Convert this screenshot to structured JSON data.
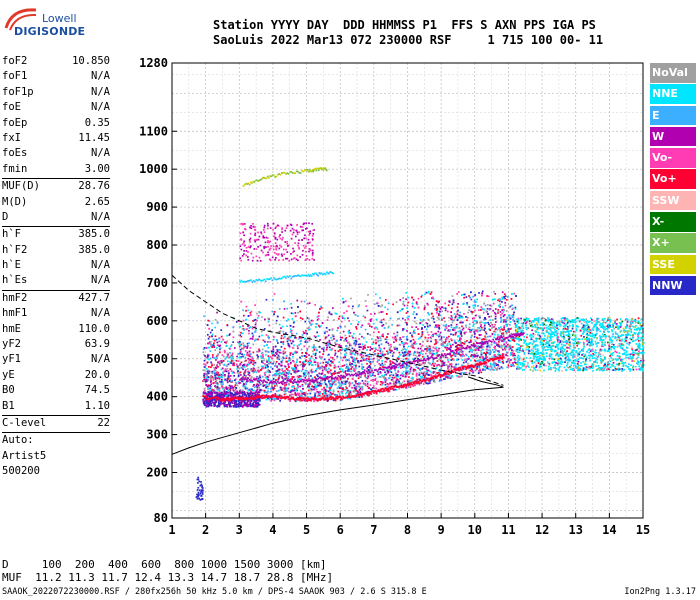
{
  "logo": {
    "line1": "Lowell",
    "line2": "DIGISONDE"
  },
  "header": {
    "line1": "Station YYYY DAY  DDD HHMMSS P1  FFS S AXN PPS IGA PS",
    "line2": "SaoLuis 2022 Mar13 072 230000 RSF     1 715 100 00- 11"
  },
  "params": {
    "group1": [
      {
        "k": "foF2",
        "v": "10.850"
      },
      {
        "k": "foF1",
        "v": "N/A"
      },
      {
        "k": "foF1p",
        "v": "N/A"
      },
      {
        "k": "foE",
        "v": "N/A"
      },
      {
        "k": "foEp",
        "v": "0.35"
      },
      {
        "k": "fxI",
        "v": "11.45"
      },
      {
        "k": "foEs",
        "v": "N/A"
      },
      {
        "k": "fmin",
        "v": "3.00"
      }
    ],
    "group2": [
      {
        "k": "MUF(D)",
        "v": "28.76"
      },
      {
        "k": "M(D)",
        "v": "2.65"
      },
      {
        "k": "D",
        "v": "N/A"
      }
    ],
    "group3": [
      {
        "k": "h`F",
        "v": "385.0"
      },
      {
        "k": "h`F2",
        "v": "385.0"
      },
      {
        "k": "h`E",
        "v": "N/A"
      },
      {
        "k": "h`Es",
        "v": "N/A"
      }
    ],
    "group4": [
      {
        "k": "hmF2",
        "v": "427.7"
      },
      {
        "k": "hmF1",
        "v": "N/A"
      },
      {
        "k": "hmE",
        "v": "110.0"
      },
      {
        "k": "yF2",
        "v": "63.9"
      },
      {
        "k": "yF1",
        "v": "N/A"
      },
      {
        "k": "yE",
        "v": "20.0"
      },
      {
        "k": "B0",
        "v": "74.5"
      },
      {
        "k": "B1",
        "v": "1.10"
      }
    ],
    "group5": [
      {
        "k": "C-level",
        "v": "22"
      }
    ],
    "auto": [
      "Auto:",
      "Artist5",
      "500200"
    ]
  },
  "legend": [
    {
      "label": "NoVal",
      "color": "#a0a0a0"
    },
    {
      "label": "NNE",
      "color": "#00e6ff"
    },
    {
      "label": "E",
      "color": "#3cb0ff"
    },
    {
      "label": "W",
      "color": "#b000b0"
    },
    {
      "label": "Vo-",
      "color": "#ff3cb4"
    },
    {
      "label": "Vo+",
      "color": "#ff0033"
    },
    {
      "label": "SSW",
      "color": "#ffb4b4"
    },
    {
      "label": "X-",
      "color": "#007800"
    },
    {
      "label": "X+",
      "color": "#78c050"
    },
    {
      "label": "SSE",
      "color": "#d2d200"
    },
    {
      "label": "NNW",
      "color": "#2828c8"
    }
  ],
  "chart_data": {
    "type": "scatter",
    "title": "",
    "xlabel": "",
    "ylabel": "",
    "xlim": [
      1,
      15
    ],
    "ylim": [
      80,
      1280
    ],
    "xticks": [
      "1",
      "2",
      "3",
      "4",
      "5",
      "6",
      "7",
      "8",
      "9",
      "10",
      "11",
      "12",
      "13",
      "14",
      "15"
    ],
    "yticks": [
      {
        "v": 80,
        "label": "80"
      },
      {
        "v": 200,
        "label": "200"
      },
      {
        "v": 300,
        "label": "300"
      },
      {
        "v": 400,
        "label": "400"
      },
      {
        "v": 500,
        "label": "500"
      },
      {
        "v": 600,
        "label": "600"
      },
      {
        "v": 700,
        "label": "700"
      },
      {
        "v": 800,
        "label": "800"
      },
      {
        "v": 900,
        "label": "900"
      },
      {
        "v": 1000,
        "label": "1000"
      },
      {
        "v": 1100,
        "label": "1100"
      },
      {
        "v": 1280,
        "label": "1280"
      }
    ],
    "grid": true,
    "traces": [
      {
        "name": "o-trace",
        "points": [
          [
            1.9,
            400
          ],
          [
            2.5,
            395
          ],
          [
            3,
            398
          ],
          [
            3.5,
            400
          ],
          [
            4,
            405
          ],
          [
            4.5,
            398
          ],
          [
            5,
            395
          ],
          [
            5.5,
            397
          ],
          [
            6,
            400
          ],
          [
            6.5,
            405
          ],
          [
            7,
            415
          ],
          [
            7.5,
            425
          ],
          [
            8,
            435
          ],
          [
            8.5,
            445
          ],
          [
            9,
            460
          ],
          [
            9.5,
            475
          ],
          [
            10,
            485
          ],
          [
            10.5,
            500
          ],
          [
            10.85,
            510
          ]
        ]
      },
      {
        "name": "x-trace",
        "points": [
          [
            3,
            450
          ],
          [
            4,
            440
          ],
          [
            5,
            445
          ],
          [
            6,
            455
          ],
          [
            7,
            470
          ],
          [
            8,
            490
          ],
          [
            9,
            510
          ],
          [
            10,
            540
          ],
          [
            11,
            560
          ],
          [
            11.45,
            570
          ]
        ]
      },
      {
        "name": "es-like",
        "points": [
          [
            3.0,
            705
          ],
          [
            4,
            712
          ],
          [
            5,
            722
          ],
          [
            5.8,
            730
          ]
        ]
      },
      {
        "name": "upper-1",
        "points": [
          [
            3.1,
            960
          ],
          [
            4,
            985
          ],
          [
            5,
            998
          ],
          [
            5.6,
            1003
          ]
        ]
      }
    ],
    "profile_solid": [
      [
        1,
        248
      ],
      [
        1.5,
        265
      ],
      [
        2,
        280
      ],
      [
        3,
        305
      ],
      [
        4,
        330
      ],
      [
        5,
        350
      ],
      [
        6,
        365
      ],
      [
        7,
        378
      ],
      [
        8,
        392
      ],
      [
        9,
        405
      ],
      [
        10,
        418
      ],
      [
        10.85,
        425
      ],
      [
        10.7,
        430
      ],
      [
        10.2,
        440
      ],
      [
        9.8,
        452
      ]
    ],
    "profile_dashed": [
      [
        1,
        720
      ],
      [
        1.5,
        680
      ],
      [
        2,
        650
      ],
      [
        2.5,
        620
      ],
      [
        3,
        600
      ],
      [
        3.5,
        580
      ],
      [
        4,
        570
      ],
      [
        5,
        555
      ],
      [
        6,
        530
      ],
      [
        7,
        510
      ],
      [
        8,
        490
      ],
      [
        9,
        470
      ],
      [
        9.5,
        462
      ],
      [
        10,
        455
      ],
      [
        10.5,
        440
      ],
      [
        10.85,
        430
      ]
    ]
  },
  "muf_table": {
    "d_label": "D  ",
    "d_values": "   100  200  400  600  800 1000 1500 3000 [km]",
    "muf_label": "MUF",
    "muf_values": "  11.2 11.3 11.7 12.4 13.3 14.7 18.7 28.8 [MHz]"
  },
  "footer": "SAAOK_2022072230000.RSF / 280fx256h 50 kHz 5.0 km / DPS-4 SAAOK 903 / 2.6 S 315.8 E",
  "version": "Ion2Png 1.3.17"
}
